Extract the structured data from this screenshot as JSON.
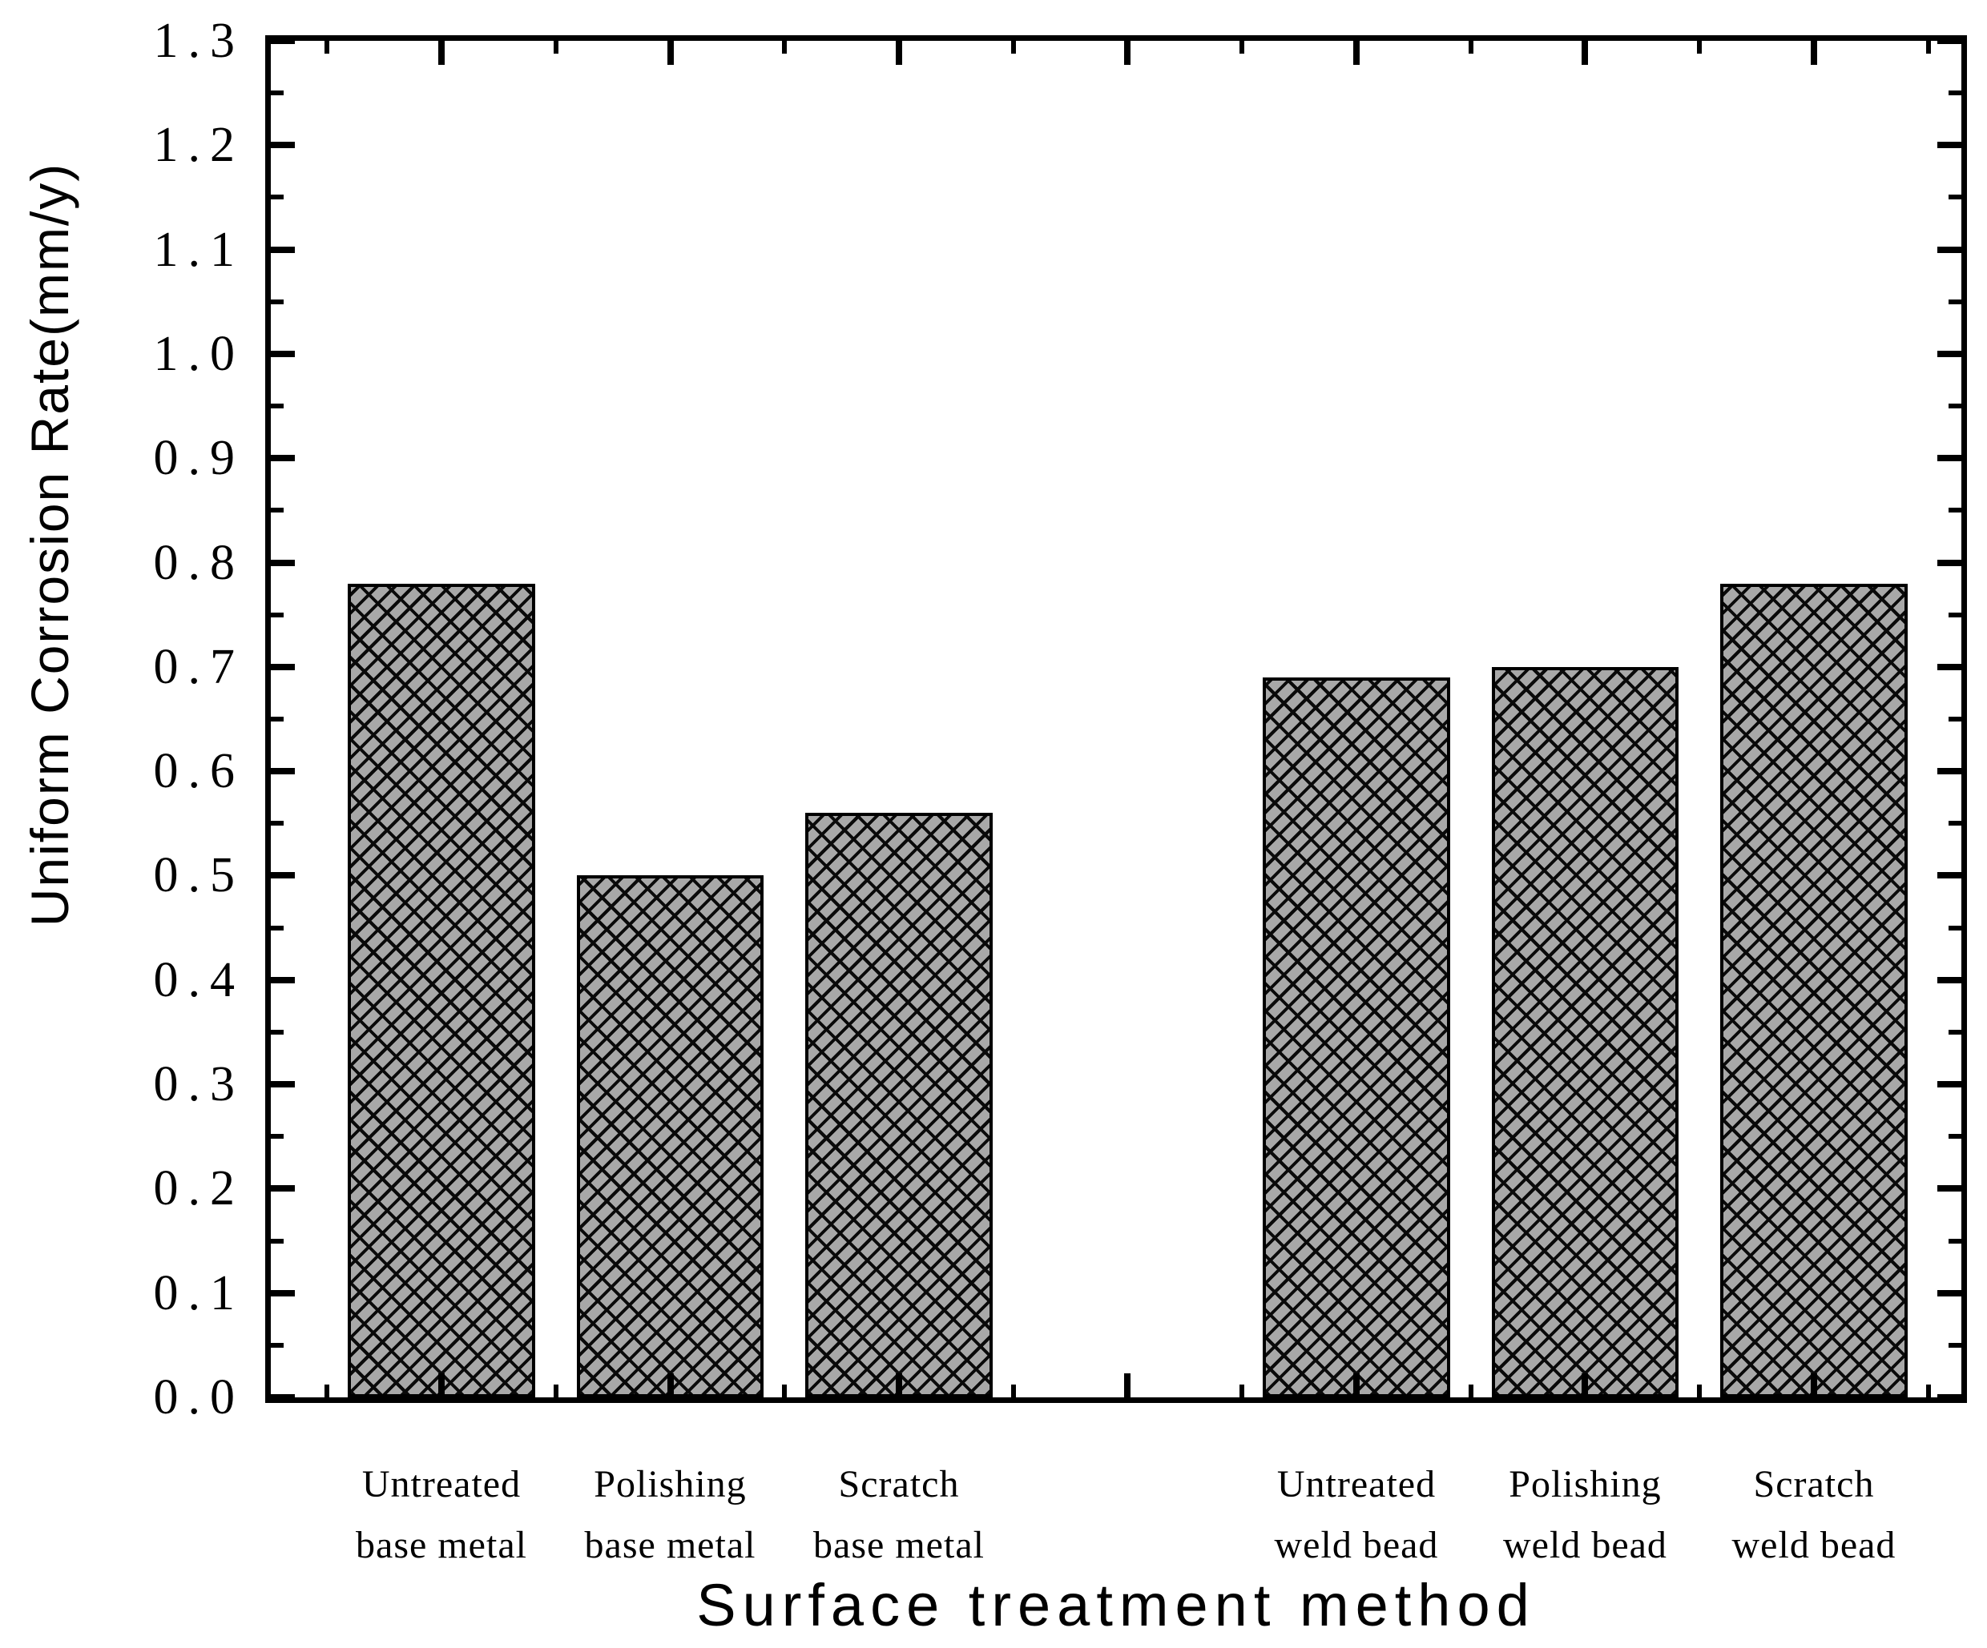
{
  "chart_data": {
    "type": "bar",
    "title": "",
    "xlabel": "Surface treatment method",
    "ylabel": "Uniform Corrosion Rate(mm/y)",
    "categories": [
      "Untreated base metal",
      "Polishing base metal",
      "Scratch base metal",
      "Untreated weld bead",
      "Polishing weld bead",
      "Scratch weld bead"
    ],
    "category_lines": [
      [
        "Untreated",
        "base metal"
      ],
      [
        "Polishing",
        "base metal"
      ],
      [
        "Scratch",
        "base metal"
      ],
      [
        "Untreated",
        "weld bead"
      ],
      [
        "Polishing",
        "weld bead"
      ],
      [
        "Scratch",
        "weld bead"
      ]
    ],
    "values": [
      0.78,
      0.5,
      0.56,
      0.69,
      0.7,
      0.78
    ],
    "slots": [
      0,
      1,
      2,
      4,
      5,
      6
    ],
    "total_slots": 7,
    "gap_slot": 3,
    "ylim": [
      0,
      1.3
    ],
    "ytick_major_step": 0.1,
    "ytick_minor_step": 0.05,
    "y_tick_labels": [
      "0.0",
      "0.1",
      "0.2",
      "0.3",
      "0.4",
      "0.5",
      "0.6",
      "0.7",
      "0.8",
      "0.9",
      "1.0",
      "1.1",
      "1.2",
      "1.3"
    ],
    "grid": false,
    "legend": false,
    "bar_fill_color": "#a8a8a8",
    "bar_hatch": "dense-diagonal-crosshatch",
    "bar_outline_color": "#000000",
    "axis_color": "#000000",
    "background_color": "#ffffff",
    "ticks_direction": "in",
    "mirrored_axes": true
  }
}
